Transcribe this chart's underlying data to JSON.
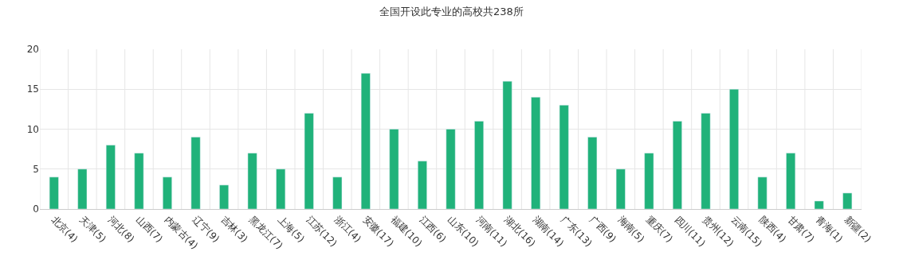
{
  "chart_data": {
    "type": "bar",
    "title": "全国开设此专业的高校共238所",
    "categories": [
      "北京(4)",
      "天津(5)",
      "河北(8)",
      "山西(7)",
      "内蒙古(4)",
      "辽宁(9)",
      "吉林(3)",
      "黑龙江(7)",
      "上海(5)",
      "江苏(12)",
      "浙江(4)",
      "安徽(17)",
      "福建(10)",
      "江西(6)",
      "山东(10)",
      "河南(11)",
      "湖北(16)",
      "湖南(14)",
      "广东(13)",
      "广西(9)",
      "海南(5)",
      "重庆(7)",
      "四川(11)",
      "贵州(12)",
      "云南(15)",
      "陕西(4)",
      "甘肃(7)",
      "青海(1)",
      "新疆(2)"
    ],
    "values": [
      4,
      5,
      8,
      7,
      4,
      9,
      3,
      7,
      5,
      12,
      4,
      17,
      10,
      6,
      10,
      11,
      16,
      14,
      13,
      9,
      5,
      7,
      11,
      12,
      15,
      4,
      7,
      1,
      2
    ],
    "color": "#20b27a",
    "ylim": [
      0,
      20
    ],
    "yticks": [
      0,
      5,
      10,
      15,
      20
    ],
    "grid": true
  }
}
